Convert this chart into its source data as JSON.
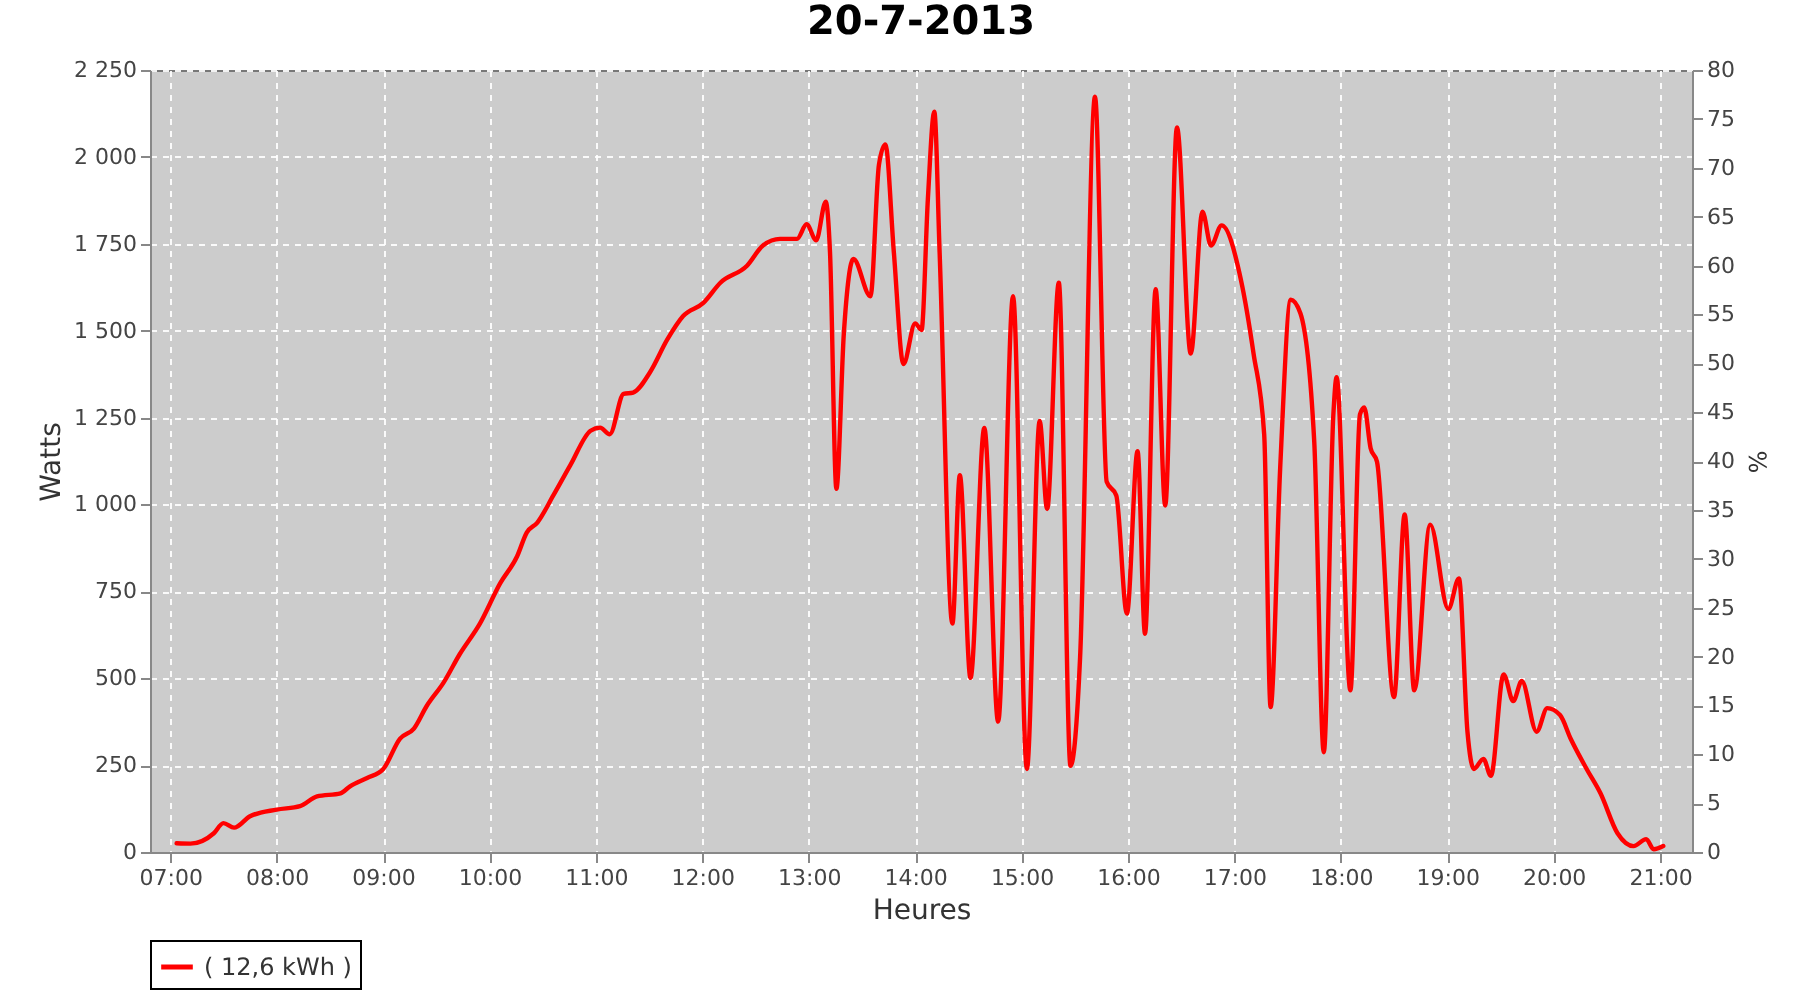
{
  "chart_data": {
    "type": "line",
    "title": "20-7-2013",
    "xlabel": "Heures",
    "ylabel": "Watts",
    "y2label": "%",
    "x": [
      7.06,
      7.19,
      7.41,
      7.5,
      7.6,
      7.75,
      8.0,
      8.22,
      8.38,
      8.6,
      8.69,
      8.85,
      9.0,
      9.16,
      9.29,
      9.41,
      9.57,
      9.72,
      9.91,
      10.1,
      10.26,
      10.35,
      10.45,
      10.6,
      10.76,
      10.95,
      11.04,
      11.13,
      11.26,
      11.35,
      11.51,
      11.67,
      11.82,
      12.01,
      12.17,
      12.42,
      12.57,
      12.73,
      12.89,
      12.98,
      13.07,
      13.16,
      13.2,
      13.26,
      13.33,
      13.42,
      13.58,
      13.66,
      13.72,
      13.8,
      13.89,
      14.0,
      14.06,
      14.12,
      14.18,
      14.23,
      14.35,
      14.42,
      14.52,
      14.65,
      14.78,
      14.92,
      15.05,
      15.17,
      15.24,
      15.35,
      15.46,
      15.55,
      15.69,
      15.8,
      15.89,
      15.99,
      16.09,
      16.16,
      16.26,
      16.35,
      16.46,
      16.59,
      16.7,
      16.78,
      16.88,
      17.06,
      17.18,
      17.28,
      17.34,
      17.43,
      17.53,
      17.62,
      17.75,
      17.84,
      17.93,
      17.96,
      18.09,
      18.18,
      18.22,
      18.28,
      18.34,
      18.5,
      18.6,
      18.69,
      18.84,
      19.01,
      19.11,
      19.19,
      19.25,
      19.34,
      19.41,
      19.53,
      19.62,
      19.7,
      19.84,
      19.94,
      20.06,
      20.16,
      20.31,
      20.44,
      20.6,
      20.75,
      20.87,
      20.94,
      21.03
    ],
    "series": [
      {
        "name": "( 12,6 kWh )",
        "color": "#ff0000",
        "values": [
          25,
          24,
          54,
          83,
          70,
          103,
          122,
          132,
          160,
          169,
          189,
          213,
          238,
          326,
          355,
          420,
          488,
          569,
          657,
          773,
          851,
          919,
          948,
          1026,
          1113,
          1212,
          1221,
          1202,
          1318,
          1322,
          1381,
          1474,
          1542,
          1580,
          1638,
          1687,
          1745,
          1764,
          1764,
          1806,
          1760,
          1871,
          1725,
          1045,
          1492,
          1706,
          1599,
          1978,
          2036,
          1725,
          1404,
          1521,
          1502,
          1881,
          2130,
          1725,
          657,
          1084,
          501,
          1220,
          375,
          1599,
          239,
          1240,
          987,
          1638,
          248,
          560,
          2173,
          1065,
          1026,
          686,
          1153,
          628,
          1619,
          997,
          2085,
          1434,
          1842,
          1745,
          1803,
          1648,
          1434,
          1201,
          417,
          1104,
          1589,
          1550,
          1182,
          287,
          1259,
          1366,
          465,
          1259,
          1279,
          1162,
          1123,
          446,
          971,
          465,
          942,
          699,
          787,
          346,
          239,
          268,
          219,
          511,
          434,
          492,
          346,
          414,
          394,
          326,
          239,
          169,
          54,
          17,
          37,
          8,
          17
        ]
      }
    ],
    "xlim": [
      6.81,
      21.3
    ],
    "xticks": [
      {
        "value": 7,
        "label": "07:00"
      },
      {
        "value": 8,
        "label": "08:00"
      },
      {
        "value": 9,
        "label": "09:00"
      },
      {
        "value": 10,
        "label": "10:00"
      },
      {
        "value": 11,
        "label": "11:00"
      },
      {
        "value": 12,
        "label": "12:00"
      },
      {
        "value": 13,
        "label": "13:00"
      },
      {
        "value": 14,
        "label": "14:00"
      },
      {
        "value": 15,
        "label": "15:00"
      },
      {
        "value": 16,
        "label": "16:00"
      },
      {
        "value": 17,
        "label": "17:00"
      },
      {
        "value": 18,
        "label": "18:00"
      },
      {
        "value": 19,
        "label": "19:00"
      },
      {
        "value": 20,
        "label": "20:00"
      },
      {
        "value": 21,
        "label": "21:00"
      }
    ],
    "ylim": [
      0,
      2250
    ],
    "yticks": [
      0,
      250,
      500,
      750,
      {
        "value": 1000,
        "label": "1 000"
      },
      {
        "value": 1250,
        "label": "1 250"
      },
      {
        "value": 1500,
        "label": "1 500"
      },
      {
        "value": 1750,
        "label": "1 750"
      },
      {
        "value": 2000,
        "label": "2 000"
      },
      {
        "value": 2250,
        "label": "2 250"
      }
    ],
    "y2lim": [
      0,
      80
    ],
    "y2ticks": [
      0,
      5,
      10,
      15,
      20,
      25,
      30,
      35,
      40,
      45,
      50,
      55,
      60,
      65,
      70,
      75,
      80
    ],
    "grid": true,
    "legend": "bottom",
    "marker": "none",
    "line_style": "solid"
  }
}
